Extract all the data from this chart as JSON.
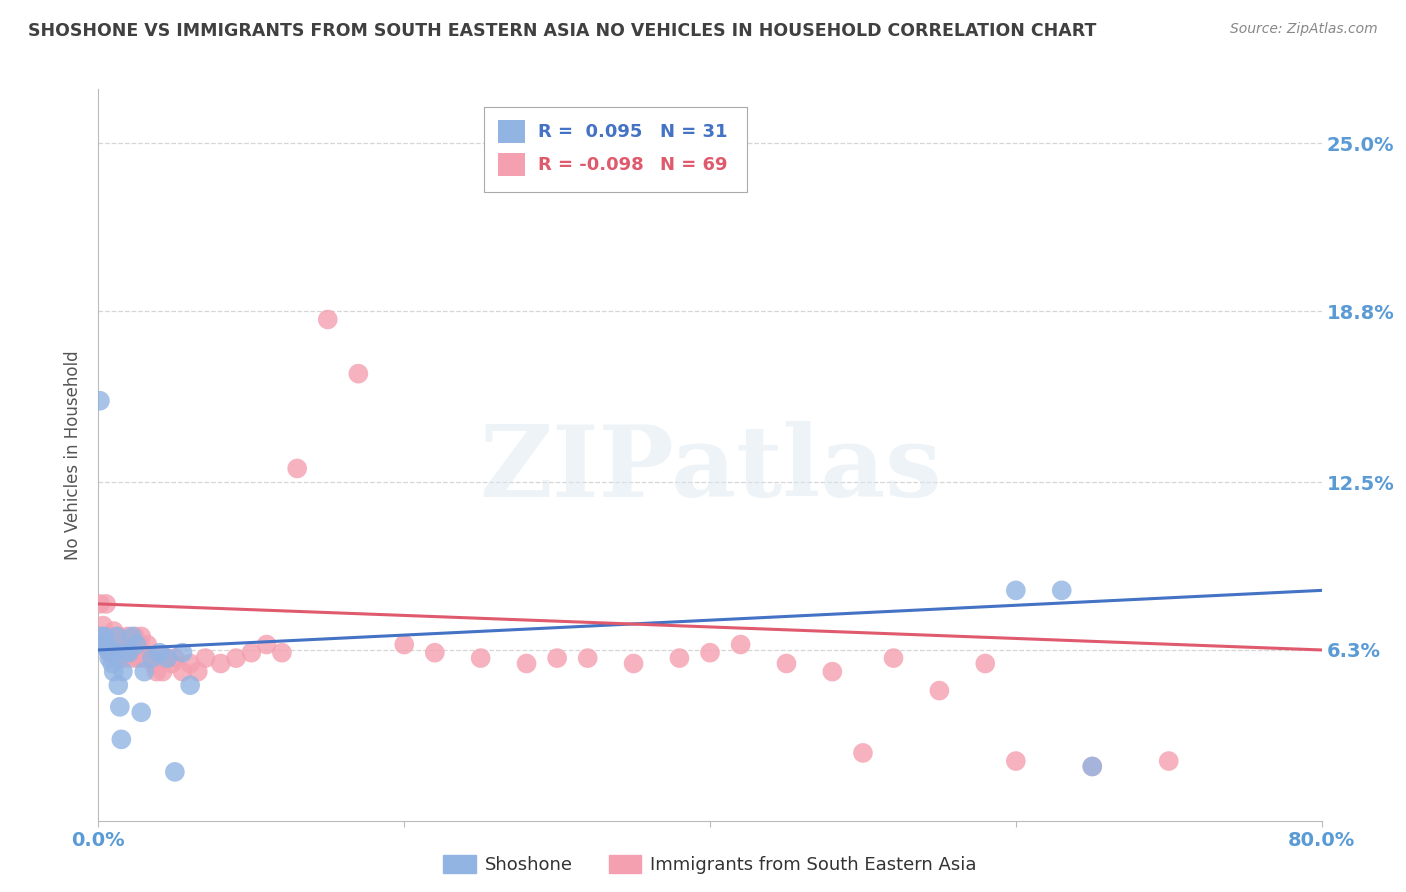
{
  "title": "SHOSHONE VS IMMIGRANTS FROM SOUTH EASTERN ASIA NO VEHICLES IN HOUSEHOLD CORRELATION CHART",
  "source": "Source: ZipAtlas.com",
  "ylabel": "No Vehicles in Household",
  "xlim": [
    0.0,
    0.8
  ],
  "ylim": [
    0.0,
    0.27
  ],
  "yticks": [
    0.063,
    0.125,
    0.188,
    0.25
  ],
  "ytick_labels": [
    "6.3%",
    "12.5%",
    "18.8%",
    "25.0%"
  ],
  "xticks": [
    0.0,
    0.2,
    0.4,
    0.6,
    0.8
  ],
  "xtick_labels": [
    "0.0%",
    "",
    "",
    "",
    "80.0%"
  ],
  "series1_name": "Shoshone",
  "series1_color": "#92b4e3",
  "series1_R": 0.095,
  "series1_N": 31,
  "series2_name": "Immigrants from South Eastern Asia",
  "series2_color": "#f4a0b0",
  "series2_R": -0.098,
  "series2_N": 69,
  "watermark": "ZIPatlas",
  "background_color": "#ffffff",
  "grid_color": "#cccccc",
  "title_color": "#404040",
  "axis_label_color": "#5b9bd5",
  "series1_x": [
    0.001,
    0.002,
    0.003,
    0.004,
    0.005,
    0.006,
    0.007,
    0.008,
    0.009,
    0.01,
    0.011,
    0.012,
    0.013,
    0.014,
    0.015,
    0.016,
    0.018,
    0.02,
    0.022,
    0.025,
    0.028,
    0.03,
    0.035,
    0.04,
    0.045,
    0.05,
    0.055,
    0.06,
    0.6,
    0.63,
    0.65
  ],
  "series1_y": [
    0.155,
    0.068,
    0.065,
    0.068,
    0.065,
    0.063,
    0.06,
    0.062,
    0.058,
    0.055,
    0.062,
    0.068,
    0.05,
    0.042,
    0.03,
    0.055,
    0.062,
    0.062,
    0.068,
    0.065,
    0.04,
    0.055,
    0.06,
    0.062,
    0.06,
    0.018,
    0.062,
    0.05,
    0.085,
    0.085,
    0.02
  ],
  "series2_x": [
    0.001,
    0.002,
    0.003,
    0.004,
    0.005,
    0.006,
    0.007,
    0.008,
    0.009,
    0.01,
    0.011,
    0.012,
    0.013,
    0.014,
    0.015,
    0.016,
    0.017,
    0.018,
    0.019,
    0.02,
    0.021,
    0.022,
    0.023,
    0.024,
    0.025,
    0.026,
    0.027,
    0.028,
    0.03,
    0.032,
    0.034,
    0.036,
    0.038,
    0.04,
    0.042,
    0.045,
    0.048,
    0.05,
    0.055,
    0.06,
    0.065,
    0.07,
    0.08,
    0.09,
    0.1,
    0.11,
    0.12,
    0.13,
    0.15,
    0.17,
    0.2,
    0.22,
    0.25,
    0.28,
    0.3,
    0.32,
    0.35,
    0.38,
    0.4,
    0.42,
    0.45,
    0.48,
    0.5,
    0.52,
    0.55,
    0.58,
    0.6,
    0.65,
    0.7
  ],
  "series2_y": [
    0.08,
    0.068,
    0.072,
    0.065,
    0.08,
    0.068,
    0.062,
    0.065,
    0.062,
    0.07,
    0.065,
    0.062,
    0.068,
    0.06,
    0.065,
    0.062,
    0.06,
    0.063,
    0.068,
    0.065,
    0.062,
    0.06,
    0.065,
    0.068,
    0.062,
    0.06,
    0.065,
    0.068,
    0.06,
    0.065,
    0.06,
    0.058,
    0.055,
    0.06,
    0.055,
    0.06,
    0.058,
    0.06,
    0.055,
    0.058,
    0.055,
    0.06,
    0.058,
    0.06,
    0.062,
    0.065,
    0.062,
    0.13,
    0.185,
    0.165,
    0.065,
    0.062,
    0.06,
    0.058,
    0.06,
    0.06,
    0.058,
    0.06,
    0.062,
    0.065,
    0.058,
    0.055,
    0.025,
    0.06,
    0.048,
    0.058,
    0.022,
    0.02,
    0.022
  ]
}
